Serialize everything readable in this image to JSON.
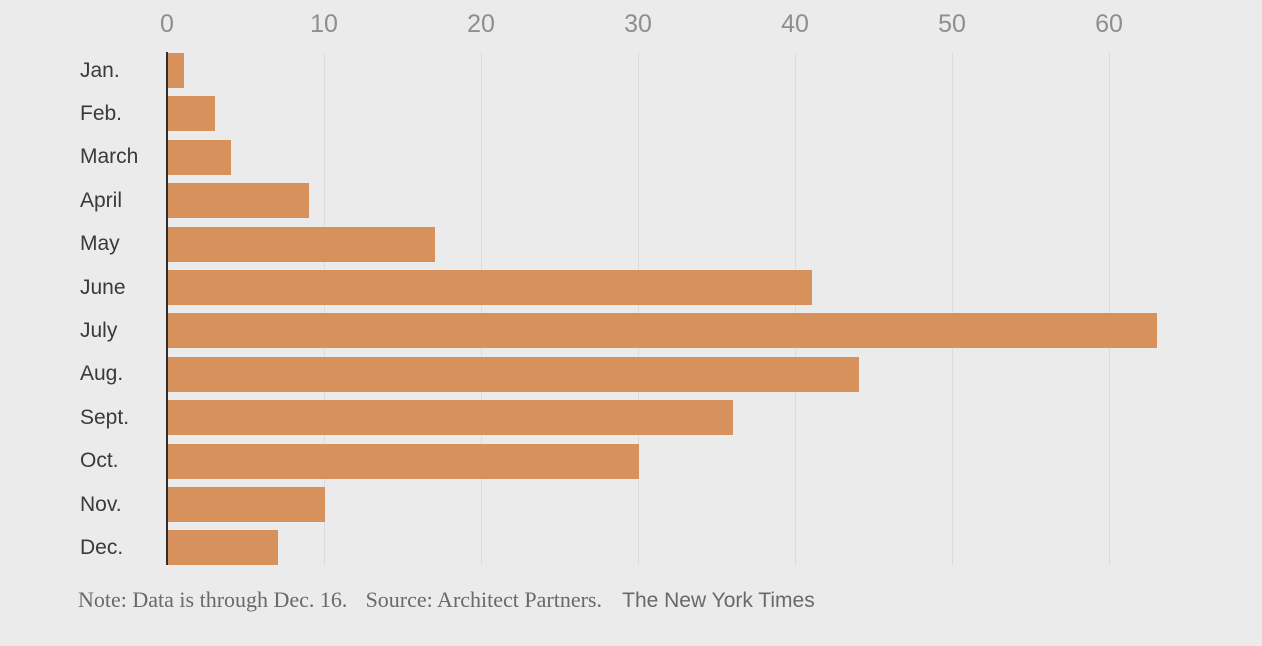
{
  "chart_data": {
    "type": "bar",
    "orientation": "horizontal",
    "title": "",
    "xlabel": "",
    "ylabel": "",
    "categories": [
      "Jan.",
      "Feb.",
      "March",
      "April",
      "May",
      "June",
      "July",
      "Aug.",
      "Sept.",
      "Oct.",
      "Nov.",
      "Dec."
    ],
    "values": [
      1,
      3,
      4,
      9,
      17,
      41,
      63,
      44,
      36,
      30,
      10,
      7
    ],
    "x_ticks": [
      0,
      10,
      20,
      30,
      40,
      50,
      60
    ],
    "xlim": [
      0,
      69.7
    ],
    "grid": true,
    "legend": false,
    "colors": {
      "bar": "#d6915c",
      "background": "#ebebeb",
      "gridline": "#dcdcdc",
      "zero_axis": "#2e2e2e",
      "tick_label": "#8e8e8e",
      "category_label": "#3a3a3a",
      "footer_text": "#696969"
    }
  },
  "footer": {
    "note": "Note: Data is through Dec. 16.",
    "source": "Source: Architect Partners.",
    "credit": "The New York Times"
  }
}
